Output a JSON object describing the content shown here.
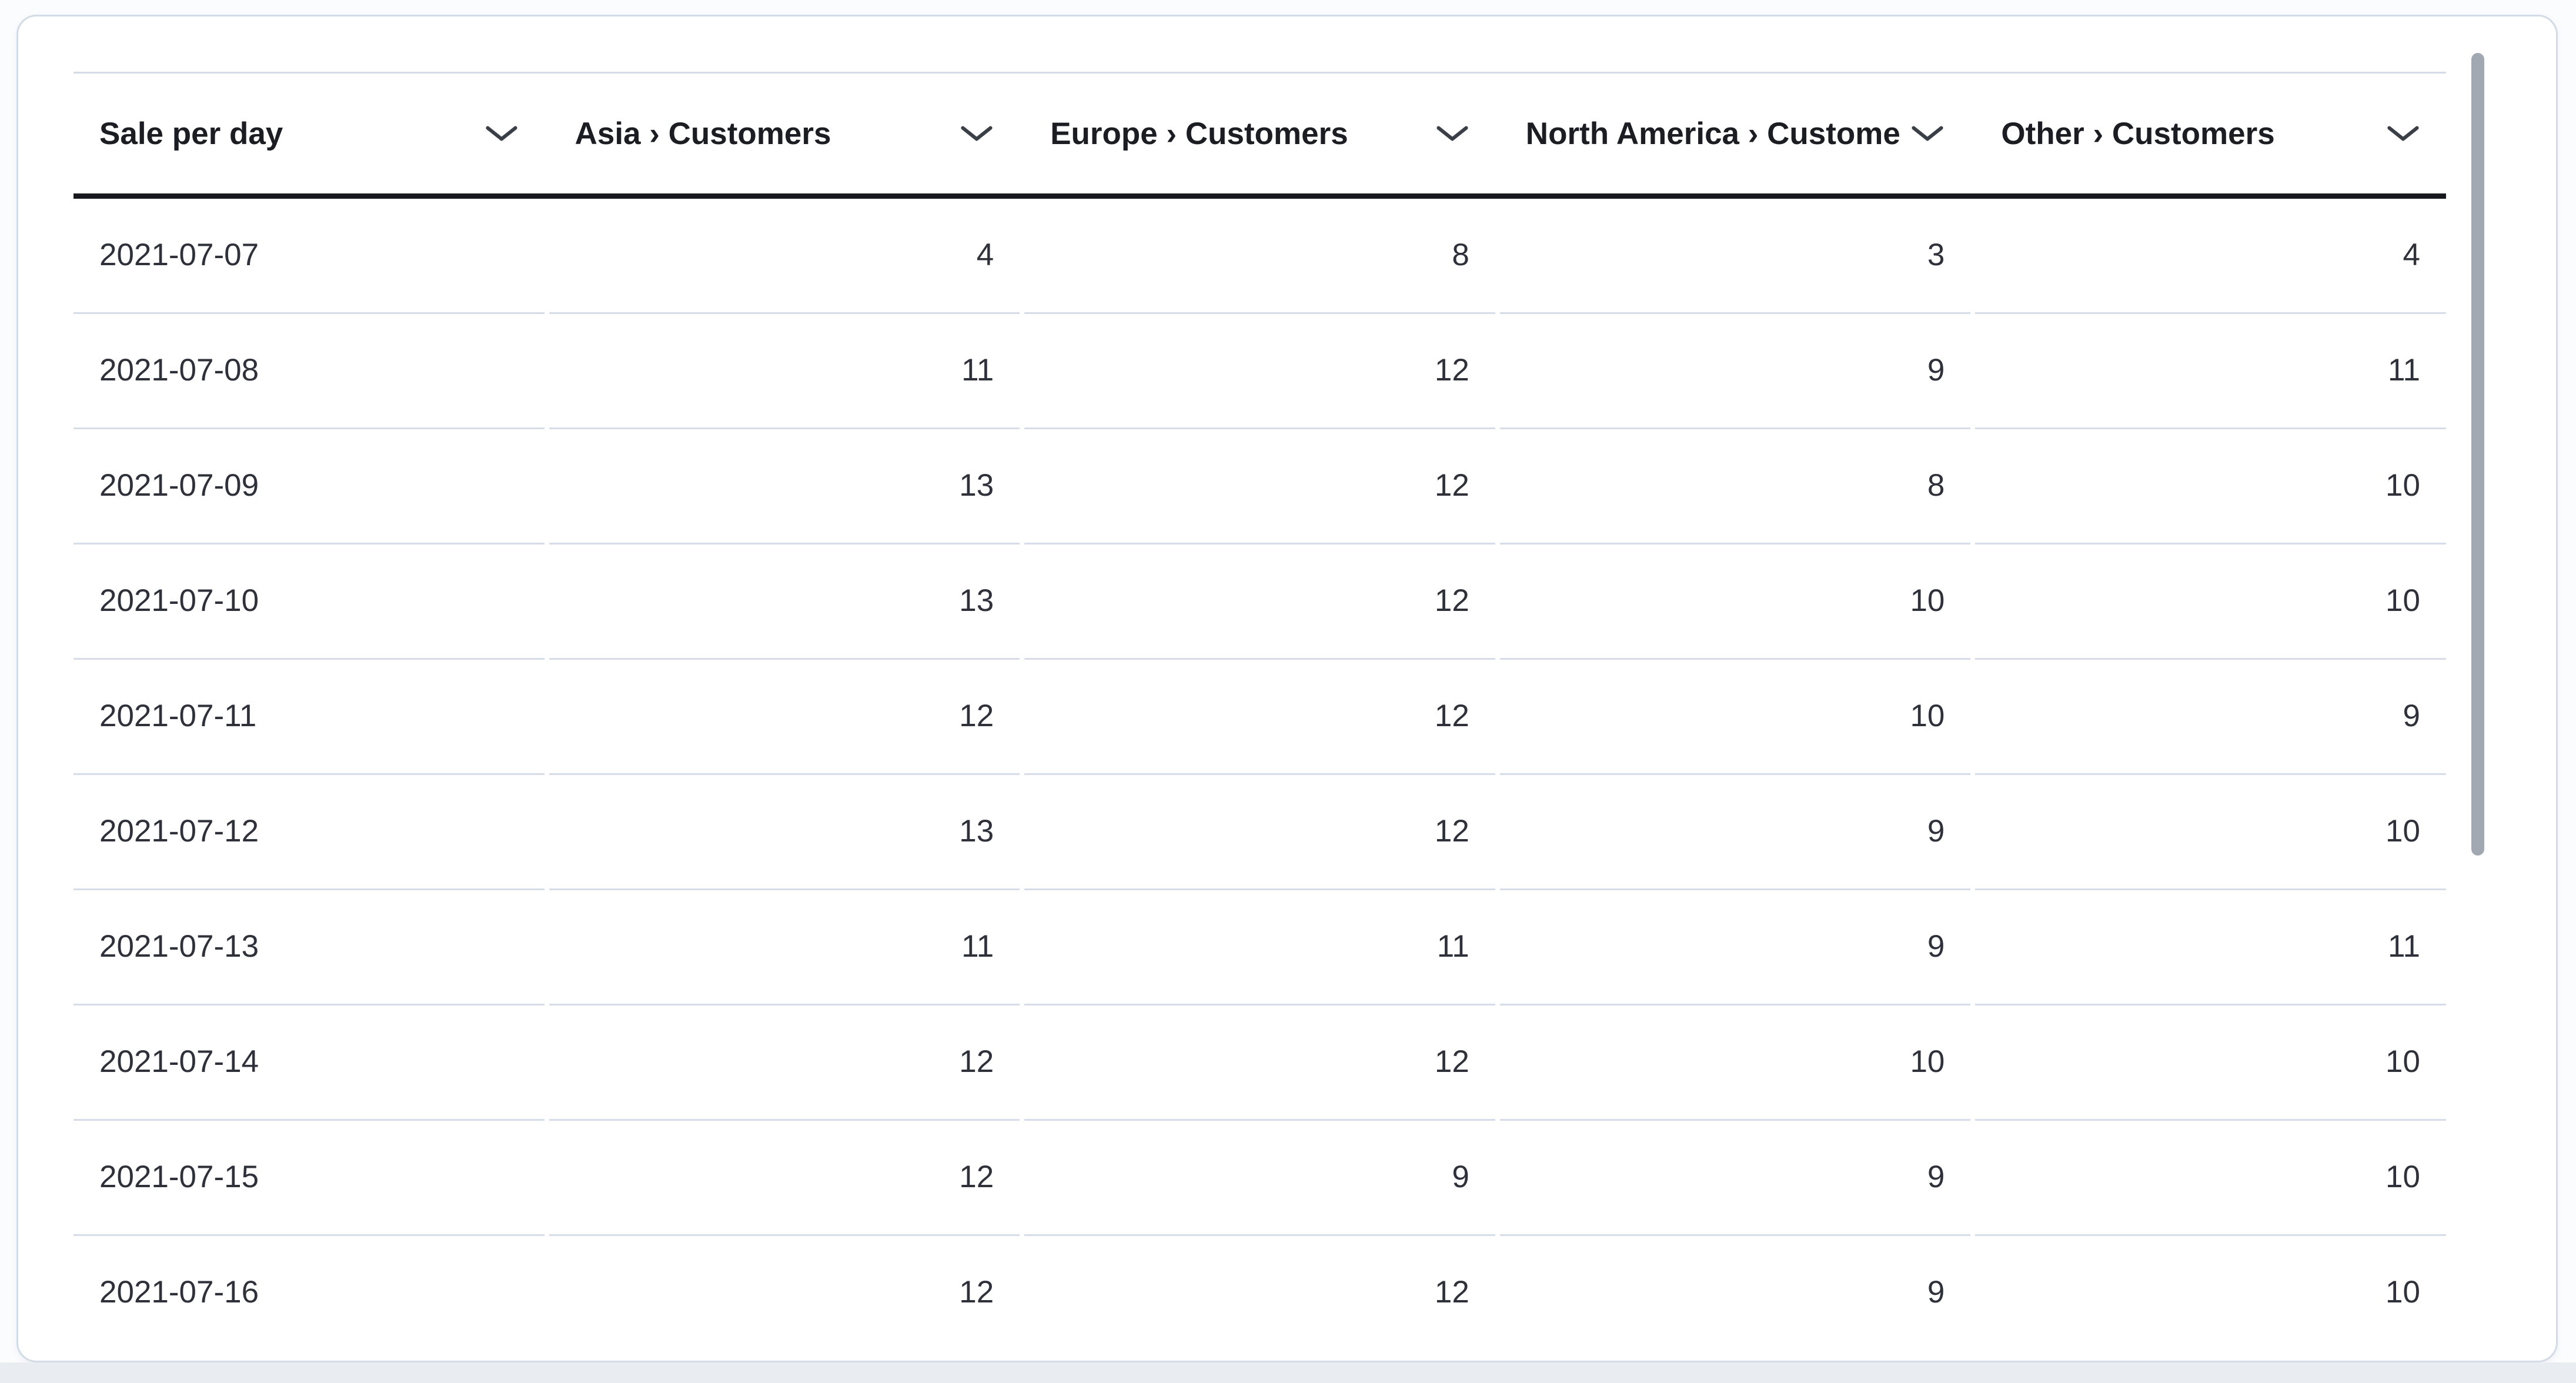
{
  "widget": {
    "type": "data-grid-table",
    "scrollbar": {
      "orientation": "vertical",
      "thumb_color": "#a2a8b2"
    }
  },
  "colors": {
    "card_background": "#ffffff",
    "card_border": "#d3dbe6",
    "header_underline": "#17191f",
    "row_divider": "#d6dde8",
    "header_text": "#1b1d23",
    "body_text": "#2e313a",
    "page_bottom_band": "#e9ecf1"
  },
  "icons": {
    "column_menu": "chevron-down-icon"
  },
  "table": {
    "columns": [
      {
        "id": "date",
        "label": "Sale per day",
        "align": "left"
      },
      {
        "id": "asia",
        "label": "Asia › Customers",
        "align": "right"
      },
      {
        "id": "europe",
        "label": "Europe › Customers",
        "align": "right"
      },
      {
        "id": "north_america",
        "label": "North America › Customers",
        "align": "right"
      },
      {
        "id": "other",
        "label": "Other › Customers",
        "align": "right"
      }
    ],
    "rows": [
      [
        "2021-07-07",
        "4",
        "8",
        "3",
        "4"
      ],
      [
        "2021-07-08",
        "11",
        "12",
        "9",
        "11"
      ],
      [
        "2021-07-09",
        "13",
        "12",
        "8",
        "10"
      ],
      [
        "2021-07-10",
        "13",
        "12",
        "10",
        "10"
      ],
      [
        "2021-07-11",
        "12",
        "12",
        "10",
        "9"
      ],
      [
        "2021-07-12",
        "13",
        "12",
        "9",
        "10"
      ],
      [
        "2021-07-13",
        "11",
        "11",
        "9",
        "11"
      ],
      [
        "2021-07-14",
        "12",
        "12",
        "10",
        "10"
      ],
      [
        "2021-07-15",
        "12",
        "9",
        "9",
        "10"
      ],
      [
        "2021-07-16",
        "12",
        "12",
        "9",
        "10"
      ]
    ]
  }
}
